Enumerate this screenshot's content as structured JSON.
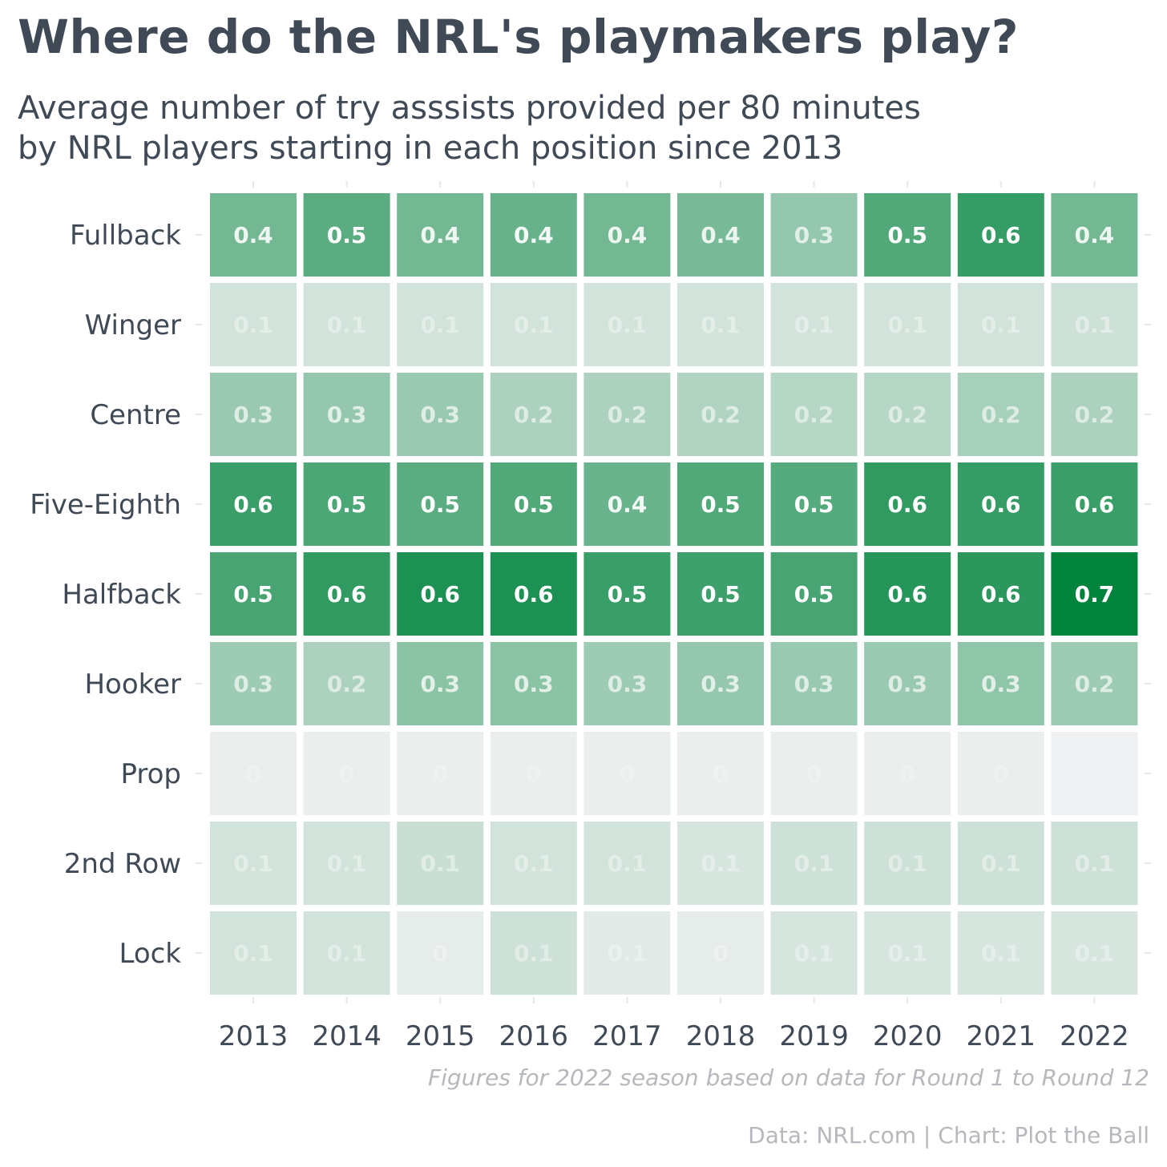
{
  "chart_data": {
    "type": "heatmap",
    "title": "Where do the NRL's playmakers play?",
    "subtitle_lines": [
      "Average number of try asssists provided per 80 minutes",
      "by NRL players starting in each position since 2013"
    ],
    "x": [
      "2013",
      "2014",
      "2015",
      "2016",
      "2017",
      "2018",
      "2019",
      "2020",
      "2021",
      "2022"
    ],
    "y": [
      "Fullback",
      "Winger",
      "Centre",
      "Five-Eighth",
      "Halfback",
      "Hooker",
      "Prop",
      "2nd Row",
      "Lock"
    ],
    "values": [
      [
        0.4,
        0.5,
        0.4,
        0.4,
        0.4,
        0.4,
        0.3,
        0.5,
        0.6,
        0.4
      ],
      [
        0.1,
        0.1,
        0.1,
        0.1,
        0.1,
        0.1,
        0.1,
        0.1,
        0.1,
        0.1
      ],
      [
        0.3,
        0.3,
        0.3,
        0.2,
        0.2,
        0.2,
        0.2,
        0.2,
        0.2,
        0.2
      ],
      [
        0.6,
        0.5,
        0.5,
        0.5,
        0.4,
        0.5,
        0.5,
        0.6,
        0.6,
        0.6
      ],
      [
        0.5,
        0.6,
        0.6,
        0.6,
        0.5,
        0.5,
        0.5,
        0.6,
        0.6,
        0.7
      ],
      [
        0.3,
        0.2,
        0.3,
        0.3,
        0.3,
        0.3,
        0.3,
        0.3,
        0.3,
        0.2
      ],
      [
        0,
        0,
        0,
        0,
        0,
        0,
        0,
        0,
        0,
        0
      ],
      [
        0.1,
        0.1,
        0.1,
        0.1,
        0.1,
        0.1,
        0.1,
        0.1,
        0.1,
        0.1
      ],
      [
        0.1,
        0.1,
        0,
        0.1,
        0.1,
        0,
        0.1,
        0.1,
        0.1,
        0.1
      ]
    ],
    "fill_weights": [
      [
        0.52,
        0.62,
        0.52,
        0.57,
        0.52,
        0.5,
        0.38,
        0.66,
        0.78,
        0.52
      ],
      [
        0.12,
        0.12,
        0.12,
        0.12,
        0.12,
        0.12,
        0.12,
        0.12,
        0.12,
        0.14
      ],
      [
        0.36,
        0.38,
        0.36,
        0.28,
        0.28,
        0.26,
        0.24,
        0.24,
        0.3,
        0.28
      ],
      [
        0.76,
        0.68,
        0.62,
        0.66,
        0.56,
        0.66,
        0.64,
        0.8,
        0.78,
        0.76
      ],
      [
        0.7,
        0.8,
        0.88,
        0.88,
        0.76,
        0.74,
        0.7,
        0.84,
        0.82,
        1.0
      ],
      [
        0.34,
        0.28,
        0.42,
        0.42,
        0.34,
        0.38,
        0.36,
        0.36,
        0.4,
        0.34
      ],
      [
        0.02,
        0.02,
        0.02,
        0.02,
        0.02,
        0.02,
        0.02,
        0.02,
        0.02,
        0.0
      ],
      [
        0.12,
        0.12,
        0.16,
        0.12,
        0.12,
        0.1,
        0.14,
        0.14,
        0.14,
        0.14
      ],
      [
        0.12,
        0.12,
        0.04,
        0.14,
        0.06,
        0.04,
        0.1,
        0.1,
        0.1,
        0.1
      ]
    ],
    "hidden_cells": [
      [
        6,
        9
      ]
    ],
    "colors": {
      "low": "#eff0f1",
      "high": "#00843d",
      "text": "#ffffff",
      "cell_gap": "#ffffff"
    },
    "footnote": "Figures for 2022 season based on data for Round 1 to Round 12",
    "credit": "Data: NRL.com | Chart: Plot the Ball"
  }
}
